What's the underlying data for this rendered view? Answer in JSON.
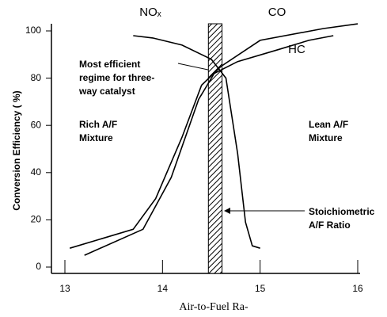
{
  "chart_data": {
    "type": "line",
    "xlabel": "Air-to-Fuel Ra-",
    "ylabel": "Conversion Efficiency ( %)",
    "xlim": [
      13,
      16
    ],
    "xticks": [
      13,
      14,
      15,
      16
    ],
    "ylim": [
      0,
      100
    ],
    "yticks": [
      0,
      20,
      40,
      60,
      80,
      100
    ],
    "band": [
      14.47,
      14.61
    ],
    "series": [
      {
        "name": "NOₓ",
        "color": "#000000",
        "x": [
          13.7,
          13.9,
          14.2,
          14.5,
          14.65,
          14.77,
          14.85,
          14.92,
          15.0
        ],
        "values": [
          98,
          97,
          94,
          88,
          80,
          48,
          19,
          9,
          8
        ]
      },
      {
        "name": "CO",
        "color": "#000000",
        "x": [
          13.05,
          13.7,
          13.93,
          14.2,
          14.4,
          14.6,
          15.0,
          15.65,
          16.0
        ],
        "values": [
          8,
          16,
          29,
          55,
          77,
          85,
          96,
          101,
          103
        ]
      },
      {
        "name": "HC",
        "color": "#000000",
        "x": [
          13.2,
          13.8,
          14.09,
          14.37,
          14.53,
          14.77,
          15.18,
          15.5,
          15.75
        ],
        "values": [
          5,
          16,
          38,
          71,
          82,
          87,
          92,
          96,
          98
        ]
      }
    ],
    "annotations": [
      {
        "lines": [
          "Most efficient",
          "regime for three-",
          "way catalyst"
        ]
      },
      {
        "lines": [
          "Rich A/F",
          "Mixture"
        ]
      },
      {
        "lines": [
          "Lean A/F",
          "Mixture"
        ]
      },
      {
        "lines": [
          "Stoichiometric",
          "A/F Ratio"
        ]
      }
    ]
  }
}
